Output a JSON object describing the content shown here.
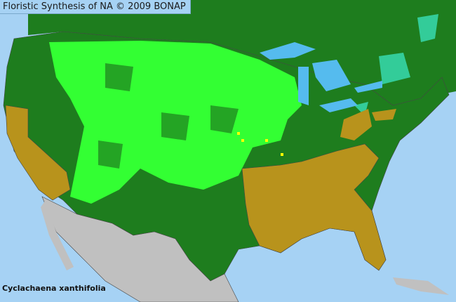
{
  "header": {
    "title": "Floristic Synthesis of NA © 2009 BONAP"
  },
  "map": {
    "species": "Cyclachaena xanthifolia",
    "colors": {
      "ocean": "#a6d2f4",
      "lakes": "#55bbee",
      "canada_and_present_region": "#1e7d1e",
      "present_county": "#33ff33",
      "absent_state": "#b8931c",
      "teal_region": "#33cc99",
      "rare_county": "#ffff00",
      "mexico": "#c0c0c0",
      "borders": "#444444"
    }
  }
}
